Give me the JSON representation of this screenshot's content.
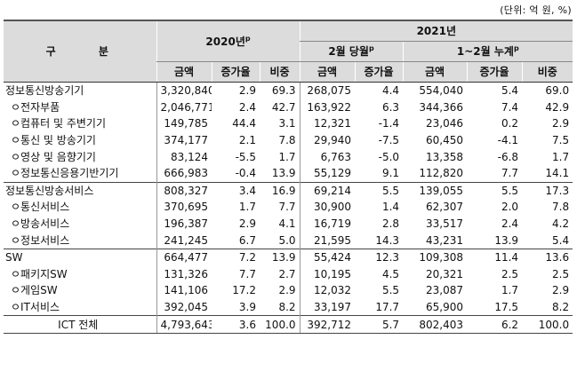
{
  "unit_note": "(단위: 억 원, %)",
  "header": {
    "category": "구 분",
    "year_2020": "2020년",
    "year_2020_sup": "p",
    "year_2021": "2021년",
    "feb_current": "2월 당월",
    "feb_current_sup": "p",
    "jan_feb_cum": "1~2월 누계",
    "jan_feb_cum_sup": "p",
    "amount": "금액",
    "growth": "증가율",
    "share": "비중"
  },
  "rows": [
    {
      "label": "정보통신방송기기",
      "level": 0,
      "v2020_amount": "3,320,840",
      "v2020_growth": "2.9",
      "v2020_share": "69.3",
      "feb_amount": "268,075",
      "feb_growth": "4.4",
      "cum_amount": "554,040",
      "cum_growth": "5.4",
      "cum_share": "69.0"
    },
    {
      "label": "ㅇ전자부품",
      "level": 1,
      "v2020_amount": "2,046,771",
      "v2020_growth": "2.4",
      "v2020_share": "42.7",
      "feb_amount": "163,922",
      "feb_growth": "6.3",
      "cum_amount": "344,366",
      "cum_growth": "7.4",
      "cum_share": "42.9"
    },
    {
      "label": "ㅇ컴퓨터 및 주변기기",
      "level": 1,
      "v2020_amount": "149,785",
      "v2020_growth": "44.4",
      "v2020_share": "3.1",
      "feb_amount": "12,321",
      "feb_growth": "-1.4",
      "cum_amount": "23,046",
      "cum_growth": "0.2",
      "cum_share": "2.9"
    },
    {
      "label": "ㅇ통신 및 방송기기",
      "level": 1,
      "v2020_amount": "374,177",
      "v2020_growth": "2.1",
      "v2020_share": "7.8",
      "feb_amount": "29,940",
      "feb_growth": "-7.5",
      "cum_amount": "60,450",
      "cum_growth": "-4.1",
      "cum_share": "7.5"
    },
    {
      "label": "ㅇ영상 및 음향기기",
      "level": 1,
      "v2020_amount": "83,124",
      "v2020_growth": "-5.5",
      "v2020_share": "1.7",
      "feb_amount": "6,763",
      "feb_growth": "-5.0",
      "cum_amount": "13,358",
      "cum_growth": "-6.8",
      "cum_share": "1.7"
    },
    {
      "label": "ㅇ정보통신응용기반기기",
      "level": 1,
      "v2020_amount": "666,983",
      "v2020_growth": "-0.4",
      "v2020_share": "13.9",
      "feb_amount": "55,129",
      "feb_growth": "9.1",
      "cum_amount": "112,820",
      "cum_growth": "7.7",
      "cum_share": "14.1"
    },
    {
      "label": "정보통신방송서비스",
      "level": 0,
      "v2020_amount": "808,327",
      "v2020_growth": "3.4",
      "v2020_share": "16.9",
      "feb_amount": "69,214",
      "feb_growth": "5.5",
      "cum_amount": "139,055",
      "cum_growth": "5.5",
      "cum_share": "17.3"
    },
    {
      "label": "ㅇ통신서비스",
      "level": 1,
      "v2020_amount": "370,695",
      "v2020_growth": "1.7",
      "v2020_share": "7.7",
      "feb_amount": "30,900",
      "feb_growth": "1.4",
      "cum_amount": "62,307",
      "cum_growth": "2.0",
      "cum_share": "7.8"
    },
    {
      "label": "ㅇ방송서비스",
      "level": 1,
      "v2020_amount": "196,387",
      "v2020_growth": "2.9",
      "v2020_share": "4.1",
      "feb_amount": "16,719",
      "feb_growth": "2.8",
      "cum_amount": "33,517",
      "cum_growth": "2.4",
      "cum_share": "4.2"
    },
    {
      "label": "ㅇ정보서비스",
      "level": 1,
      "v2020_amount": "241,245",
      "v2020_growth": "6.7",
      "v2020_share": "5.0",
      "feb_amount": "21,595",
      "feb_growth": "14.3",
      "cum_amount": "43,231",
      "cum_growth": "13.9",
      "cum_share": "5.4"
    },
    {
      "label": "SW",
      "level": 0,
      "v2020_amount": "664,477",
      "v2020_growth": "7.2",
      "v2020_share": "13.9",
      "feb_amount": "55,424",
      "feb_growth": "12.3",
      "cum_amount": "109,308",
      "cum_growth": "11.4",
      "cum_share": "13.6"
    },
    {
      "label": "ㅇ패키지SW",
      "level": 1,
      "v2020_amount": "131,326",
      "v2020_growth": "7.7",
      "v2020_share": "2.7",
      "feb_amount": "10,195",
      "feb_growth": "4.5",
      "cum_amount": "20,321",
      "cum_growth": "2.5",
      "cum_share": "2.5"
    },
    {
      "label": "ㅇ게임SW",
      "level": 1,
      "v2020_amount": "141,106",
      "v2020_growth": "17.2",
      "v2020_share": "2.9",
      "feb_amount": "12,032",
      "feb_growth": "5.5",
      "cum_amount": "23,087",
      "cum_growth": "1.7",
      "cum_share": "2.9"
    },
    {
      "label": "ㅇIT서비스",
      "level": 1,
      "v2020_amount": "392,045",
      "v2020_growth": "3.9",
      "v2020_share": "8.2",
      "feb_amount": "33,197",
      "feb_growth": "17.7",
      "cum_amount": "65,900",
      "cum_growth": "17.5",
      "cum_share": "8.2"
    },
    {
      "label": "ICT 전체",
      "level": 2,
      "v2020_amount": "4,793,643",
      "v2020_growth": "3.6",
      "v2020_share": "100.0",
      "feb_amount": "392,712",
      "feb_growth": "5.7",
      "cum_amount": "802,403",
      "cum_growth": "6.2",
      "cum_share": "100.0"
    }
  ]
}
